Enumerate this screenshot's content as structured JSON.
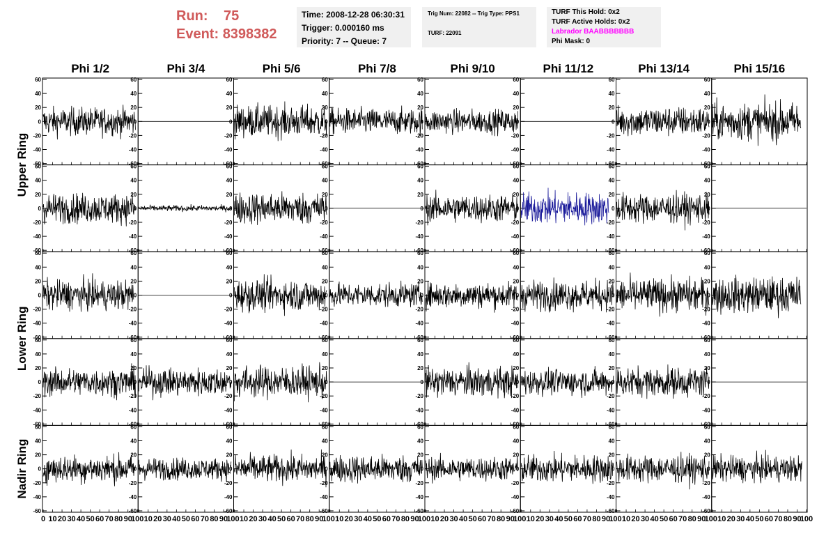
{
  "header": {
    "run_label": "Run:",
    "run_value": "75",
    "event_label": "Event:",
    "event_value": "8398382"
  },
  "info_box_1": {
    "time": "Time: 2008-12-28 06:30:31",
    "trigger": "Trigger: 0.000160 ms",
    "priority": "Priority: 7 -- Queue: 7"
  },
  "info_box_2": {
    "trig": "Trig Num: 22082 -- Trig Type: PPS1",
    "turf": "TURF: 22091"
  },
  "info_box_3": {
    "this_hold": "TURF This Hold: 0x2",
    "active_holds": "TURF Active Holds: 0x2",
    "labrador": "Labrador BAABBBBBBB",
    "phi_mask": "Phi Mask: 0"
  },
  "chart_data": {
    "type": "line",
    "columns": [
      "Phi 1/2",
      "Phi 3/4",
      "Phi 5/6",
      "Phi 7/8",
      "Phi 9/10",
      "Phi 11/12",
      "Phi 13/14",
      "Phi 15/16"
    ],
    "ring_labels": [
      {
        "label": "Upper Ring",
        "rows": [
          0,
          1
        ]
      },
      {
        "label": "Lower Ring",
        "rows": [
          2,
          3
        ]
      },
      {
        "label": "Nadir Ring",
        "rows": [
          4
        ]
      }
    ],
    "y_ticks": [
      "-60",
      "-40",
      "-20",
      "0",
      "20",
      "40",
      "60"
    ],
    "x_ticks": [
      "0",
      "10",
      "20",
      "30",
      "40",
      "50",
      "60",
      "70",
      "80",
      "90",
      "100"
    ],
    "ylim": [
      -60,
      60
    ],
    "xlim": [
      0,
      100
    ],
    "colors": {
      "trace": "#000000",
      "highlight": "#1a1a9a"
    },
    "panels": [
      [
        {
          "amp": 14,
          "len": 98
        },
        {
          "amp": 0,
          "len": 100
        },
        {
          "amp": 16,
          "len": 98
        },
        {
          "amp": 13,
          "len": 98
        },
        {
          "amp": 12,
          "len": 98
        },
        {
          "amp": 0,
          "len": 100
        },
        {
          "amp": 15,
          "len": 98
        },
        {
          "amp": 19,
          "len": 94
        }
      ],
      [
        {
          "amp": 15,
          "len": 98
        },
        {
          "amp": 3,
          "len": 98
        },
        {
          "amp": 16,
          "len": 98
        },
        {
          "amp": 0,
          "len": 100
        },
        {
          "amp": 14,
          "len": 98
        },
        {
          "amp": 16,
          "len": 93,
          "highlight": true
        },
        {
          "amp": 15,
          "len": 98
        },
        {
          "amp": 0,
          "len": 100
        }
      ],
      [
        {
          "amp": 15,
          "len": 96
        },
        {
          "amp": 0,
          "len": 100
        },
        {
          "amp": 16,
          "len": 98
        },
        {
          "amp": 12,
          "len": 98
        },
        {
          "amp": 13,
          "len": 98
        },
        {
          "amp": 15,
          "len": 98
        },
        {
          "amp": 17,
          "len": 98
        },
        {
          "amp": 18,
          "len": 94
        }
      ],
      [
        {
          "amp": 14,
          "len": 98
        },
        {
          "amp": 14,
          "len": 98
        },
        {
          "amp": 16,
          "len": 98
        },
        {
          "amp": 0,
          "len": 100
        },
        {
          "amp": 15,
          "len": 98
        },
        {
          "amp": 13,
          "len": 98
        },
        {
          "amp": 15,
          "len": 98
        },
        {
          "amp": 0,
          "len": 100
        }
      ],
      [
        {
          "amp": 14,
          "len": 98
        },
        {
          "amp": 11,
          "len": 98
        },
        {
          "amp": 14,
          "len": 98
        },
        {
          "amp": 14,
          "len": 98
        },
        {
          "amp": 12,
          "len": 98
        },
        {
          "amp": 14,
          "len": 98
        },
        {
          "amp": 14,
          "len": 98
        },
        {
          "amp": 13,
          "len": 95
        }
      ]
    ]
  }
}
